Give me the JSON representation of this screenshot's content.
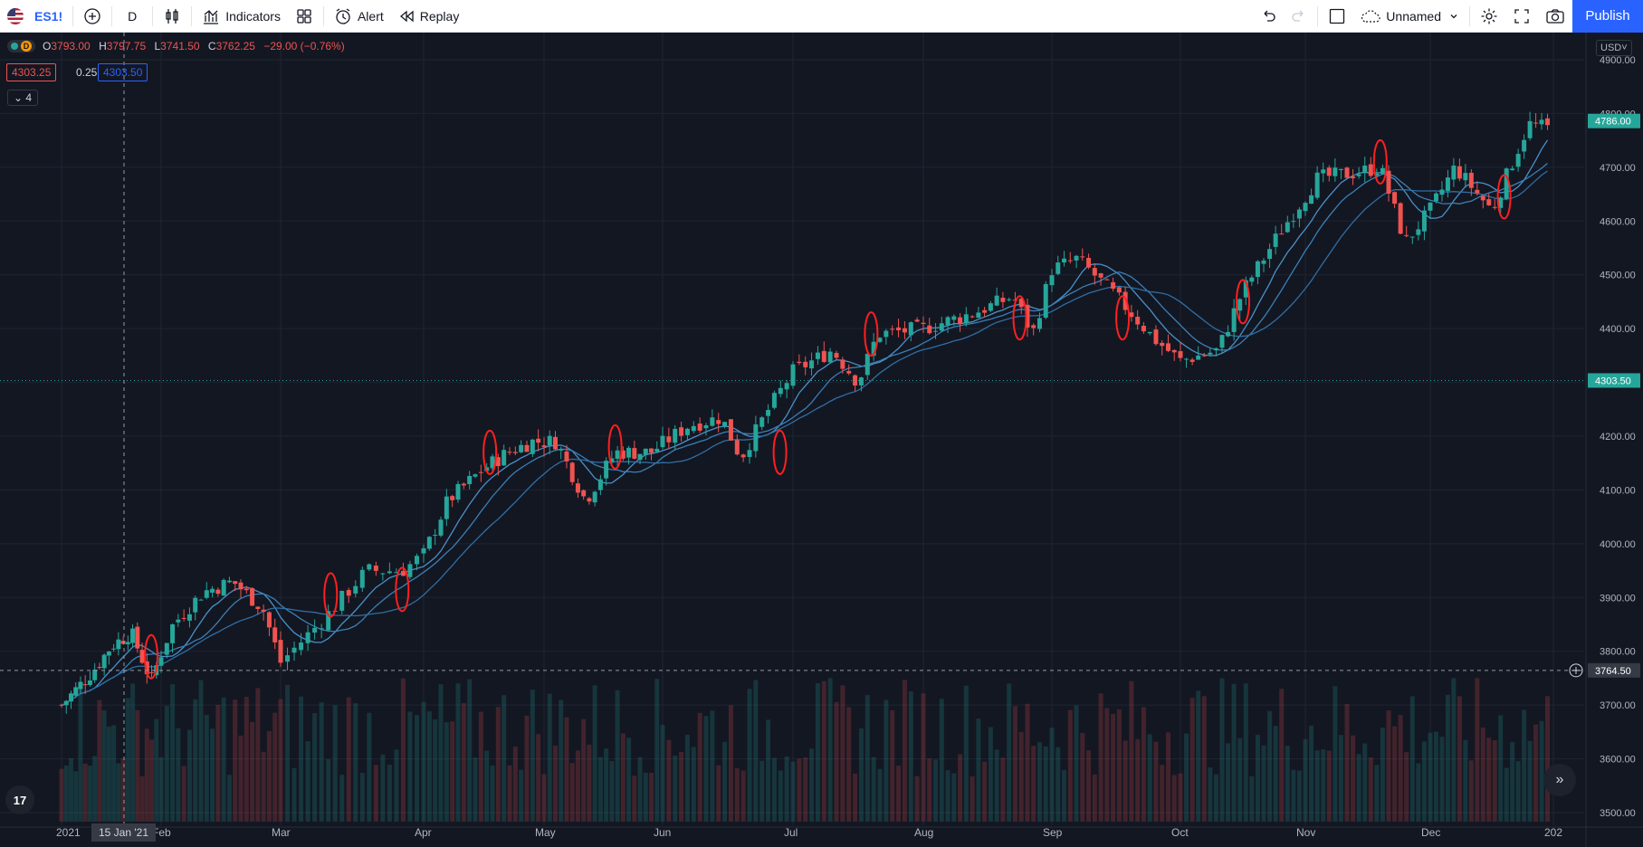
{
  "toolbar": {
    "symbol": "ES1!",
    "interval": "D",
    "indicators_label": "Indicators",
    "alert_label": "Alert",
    "replay_label": "Replay",
    "layout_name": "Unnamed",
    "publish_label": "Publish"
  },
  "legend": {
    "status_letter": "D",
    "open_key": "O",
    "open": "3793.00",
    "high_key": "H",
    "high": "3797.75",
    "low_key": "L",
    "low": "3741.50",
    "close_key": "C",
    "close": "3762.25",
    "change": "−29.00 (−0.76%)",
    "bid": "4303.25",
    "spread": "0.25",
    "ask": "4303.50",
    "indicators_collapsed": "4"
  },
  "currency": "USD",
  "crosshair": {
    "date_label": "15 Jan '21",
    "price_label": "3764.50"
  },
  "chart_data": {
    "type": "candlestick",
    "symbol": "ES1!",
    "interval": "D",
    "ylim": [
      3490,
      4910
    ],
    "y_ticks": [
      "4900.00",
      "4800.00",
      "4700.00",
      "4600.00",
      "4500.00",
      "4400.00",
      "4300.00",
      "4200.00",
      "4100.00",
      "4000.00",
      "3900.00",
      "3800.00",
      "3700.00",
      "3600.00",
      "3500.00"
    ],
    "x_ticks": [
      "2021",
      "Feb",
      "Mar",
      "Apr",
      "May",
      "Jun",
      "Jul",
      "Aug",
      "Sep",
      "Oct",
      "Nov",
      "Dec",
      "202"
    ],
    "price_labels": [
      {
        "value": 4786.0,
        "text": "4786.00",
        "color": "#26a69a"
      },
      {
        "value": 4303.5,
        "text": "4303.50",
        "color": "#26a69a"
      },
      {
        "value": 3764.5,
        "text": "3764.50",
        "color": "#363a45"
      }
    ],
    "current_price_line": 4303.5,
    "crosshair_price": 3764.5,
    "close_path": [
      {
        "month": 0.0,
        "close": 3700
      },
      {
        "month": 0.3,
        "close": 3760
      },
      {
        "month": 0.5,
        "close": 3810
      },
      {
        "month": 0.7,
        "close": 3835
      },
      {
        "month": 0.9,
        "close": 3745
      },
      {
        "month": 1.1,
        "close": 3850
      },
      {
        "month": 1.35,
        "close": 3910
      },
      {
        "month": 1.6,
        "close": 3930
      },
      {
        "month": 1.85,
        "close": 3880
      },
      {
        "month": 2.0,
        "close": 3780
      },
      {
        "month": 2.3,
        "close": 3860
      },
      {
        "month": 2.6,
        "close": 3950
      },
      {
        "month": 2.85,
        "close": 3950
      },
      {
        "month": 3.0,
        "close": 3980
      },
      {
        "month": 3.2,
        "close": 4080
      },
      {
        "month": 3.5,
        "close": 4140
      },
      {
        "month": 3.7,
        "close": 4170
      },
      {
        "month": 3.9,
        "close": 4190
      },
      {
        "month": 4.1,
        "close": 4190
      },
      {
        "month": 4.35,
        "close": 4080
      },
      {
        "month": 4.6,
        "close": 4170
      },
      {
        "month": 4.9,
        "close": 4170
      },
      {
        "month": 5.2,
        "close": 4220
      },
      {
        "month": 5.45,
        "close": 4235
      },
      {
        "month": 5.6,
        "close": 4160
      },
      {
        "month": 5.8,
        "close": 4245
      },
      {
        "month": 6.0,
        "close": 4320
      },
      {
        "month": 6.3,
        "close": 4360
      },
      {
        "month": 6.5,
        "close": 4300
      },
      {
        "month": 6.65,
        "close": 4390
      },
      {
        "month": 7.0,
        "close": 4400
      },
      {
        "month": 7.4,
        "close": 4430
      },
      {
        "month": 7.7,
        "close": 4460
      },
      {
        "month": 7.85,
        "close": 4390
      },
      {
        "month": 8.0,
        "close": 4510
      },
      {
        "month": 8.2,
        "close": 4530
      },
      {
        "month": 8.5,
        "close": 4460
      },
      {
        "month": 8.8,
        "close": 4380
      },
      {
        "month": 9.0,
        "close": 4340
      },
      {
        "month": 9.3,
        "close": 4360
      },
      {
        "month": 9.5,
        "close": 4470
      },
      {
        "month": 9.8,
        "close": 4580
      },
      {
        "month": 10.1,
        "close": 4680
      },
      {
        "month": 10.4,
        "close": 4690
      },
      {
        "month": 10.6,
        "close": 4700
      },
      {
        "month": 10.8,
        "close": 4560
      },
      {
        "month": 11.0,
        "close": 4620
      },
      {
        "month": 11.2,
        "close": 4700
      },
      {
        "month": 11.5,
        "close": 4620
      },
      {
        "month": 11.8,
        "close": 4780
      },
      {
        "month": 12.0,
        "close": 4770
      }
    ],
    "last_candle": {
      "open": 3793.0,
      "high": 3797.75,
      "low": 3741.5,
      "close": 3762.25
    },
    "moving_averages": 3,
    "volume_pane": true,
    "annotations": "red hand-drawn circles around selected candles"
  }
}
